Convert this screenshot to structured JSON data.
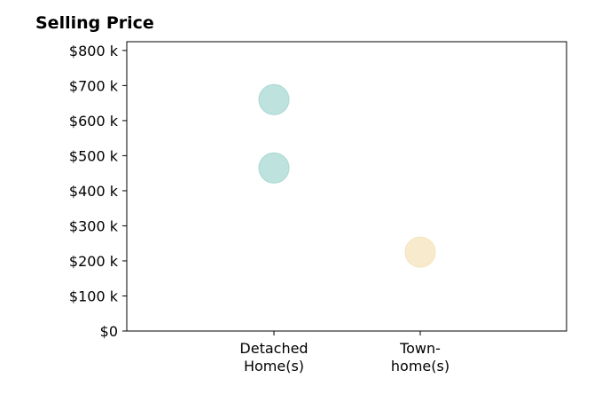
{
  "chart_data": {
    "type": "scatter",
    "title": "Selling Price",
    "xlabel": "",
    "ylabel": "",
    "categories": [
      [
        "Detached",
        "Home(s)"
      ],
      [
        "Town-",
        "home(s)"
      ]
    ],
    "yticks": [
      "$0",
      "$100 k",
      "$200 k",
      "$300 k",
      "$400 k",
      "$500 k",
      "$600 k",
      "$700 k",
      "$800 k"
    ],
    "ylim": [
      0,
      825
    ],
    "grid": false,
    "points": [
      {
        "category": 0,
        "value": 660,
        "color": "#a8d8d2"
      },
      {
        "category": 0,
        "value": 465,
        "color": "#a8d8d2"
      },
      {
        "category": 1,
        "value": 225,
        "color": "#f5e3bc"
      }
    ]
  }
}
